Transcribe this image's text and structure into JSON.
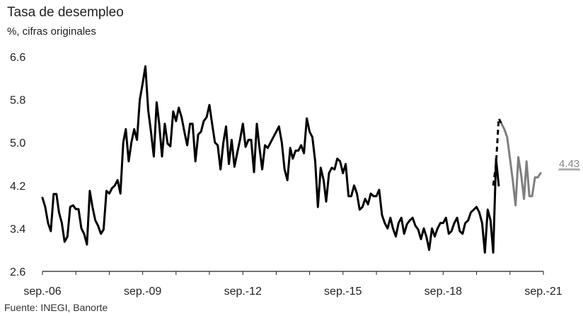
{
  "chart_data": {
    "type": "line",
    "title": "Tasa de desempleo",
    "subtitle": "%, cifras originales",
    "source": "Fuente: INEGI, Banorte",
    "ylim": [
      2.6,
      6.6
    ],
    "yticks": [
      2.6,
      3.4,
      4.2,
      5.0,
      5.8,
      6.6
    ],
    "ytick_labels": [
      "2.6",
      "3.4",
      "4.2",
      "5.0",
      "5.8",
      "6.6"
    ],
    "xticks": [
      "sep.-06",
      "sep.-09",
      "sep.-12",
      "sep.-15",
      "sep.-18",
      "sep.-21"
    ],
    "last_value_label": "4.43",
    "colors": {
      "observed": "#000000",
      "recent": "#7f7f7f",
      "gap": "#000000"
    },
    "series": [
      {
        "style": "solid",
        "x_start": "2006-09",
        "values": [
          3.97,
          3.8,
          3.5,
          3.35,
          4.04,
          4.04,
          3.7,
          3.5,
          3.15,
          3.25,
          3.8,
          3.83,
          3.76,
          3.76,
          3.4,
          3.3,
          3.1,
          4.1,
          3.8,
          3.55,
          3.45,
          3.3,
          3.38,
          4.1,
          4.05,
          4.15,
          4.2,
          4.3,
          4.05,
          5.0,
          5.25,
          4.65,
          5.0,
          5.25,
          5.05,
          5.8,
          6.1,
          6.42,
          5.6,
          5.2,
          4.74,
          5.75,
          5.35,
          4.74,
          5.35,
          4.98,
          4.93,
          5.58,
          5.4,
          5.65,
          5.47,
          5.2,
          4.95,
          5.35,
          5.35,
          4.65,
          5.15,
          5.2,
          5.4,
          5.47,
          5.7,
          5.35,
          5.0,
          4.95,
          4.5,
          5.0,
          5.3,
          4.6,
          5.05,
          4.55,
          4.8,
          5.05,
          5.35,
          4.92,
          5.05,
          5.05,
          4.45,
          5.35,
          4.92,
          4.5,
          4.95,
          4.9,
          5.0,
          5.1,
          5.2,
          5.3,
          5.0,
          4.5,
          4.3,
          4.9,
          4.7,
          4.85,
          4.85,
          4.95,
          4.8,
          5.45,
          5.2,
          5.1,
          4.65,
          3.8,
          4.53,
          4.3,
          3.9,
          4.43,
          4.53,
          4.5,
          4.7,
          4.65,
          4.43,
          4.6,
          4.0,
          4.0,
          4.2,
          4.05,
          3.75,
          3.8,
          3.95,
          3.85,
          4.05,
          4.0,
          4.0,
          4.12,
          3.65,
          3.5,
          3.4,
          3.6,
          3.4,
          3.25,
          3.5,
          3.6,
          3.3,
          3.48,
          3.55,
          3.6,
          3.45,
          3.38,
          3.2,
          3.4,
          3.25,
          3.0,
          3.4,
          3.25,
          3.4,
          3.5,
          3.5,
          3.6,
          3.3,
          3.35,
          3.5,
          3.6,
          3.35,
          3.3,
          3.5,
          3.55,
          3.7,
          3.75,
          3.8,
          3.7,
          3.5,
          2.95,
          3.75,
          3.55,
          2.95,
          4.7,
          4.2
        ]
      },
      {
        "style": "dashed",
        "x_start": "2020-03",
        "values": [
          4.2,
          4.6,
          5.45,
          5.35
        ]
      },
      {
        "style": "solid",
        "x_start": "2020-06",
        "values": [
          5.35,
          5.25,
          5.1,
          4.7,
          4.3,
          3.83,
          4.73,
          4.4,
          3.95,
          4.65,
          4.0,
          4.0,
          4.35,
          4.35,
          4.43
        ]
      }
    ]
  }
}
